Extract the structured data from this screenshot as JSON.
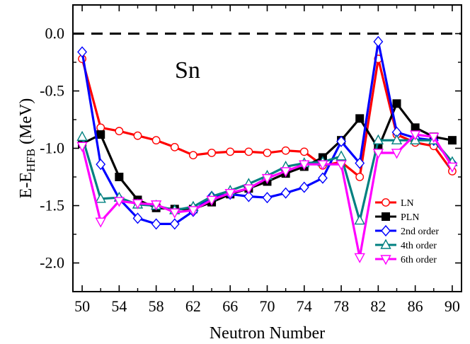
{
  "chart_data": {
    "type": "line",
    "xlabel": "Neutron Number",
    "ylabel_parts": {
      "main": "E-E",
      "sub": "HFB",
      "unit": " (MeV)"
    },
    "annotation": "Sn",
    "xlim": [
      49,
      91
    ],
    "ylim": [
      -2.25,
      0.25
    ],
    "xticks": [
      50,
      54,
      58,
      62,
      66,
      70,
      74,
      78,
      82,
      86,
      90
    ],
    "yticks": [
      0.0,
      -0.5,
      -1.0,
      -1.5,
      -2.0
    ],
    "ytick_labels": [
      "0.0",
      "-0.5",
      "-1.0",
      "-1.5",
      "-2.0"
    ],
    "reference_line": {
      "y": 0.0,
      "style": "dashed"
    },
    "legend_position": "bottom-right",
    "x": [
      50,
      52,
      54,
      56,
      58,
      60,
      62,
      64,
      66,
      68,
      70,
      72,
      74,
      76,
      78,
      80,
      82,
      84,
      86,
      88,
      90
    ],
    "series": [
      {
        "name": "LN",
        "color": "#ff0000",
        "marker": "circle-open",
        "values": [
          -0.22,
          -0.82,
          -0.85,
          -0.89,
          -0.93,
          -0.99,
          -1.06,
          -1.04,
          -1.03,
          -1.03,
          -1.04,
          -1.02,
          -1.03,
          -1.15,
          -1.12,
          -1.25,
          -0.22,
          -0.88,
          -0.95,
          -0.98,
          -1.2
        ]
      },
      {
        "name": "PLN",
        "color": "#000000",
        "marker": "square-filled",
        "values": [
          -0.96,
          -0.88,
          -1.25,
          -1.45,
          -1.52,
          -1.53,
          -1.53,
          -1.47,
          -1.4,
          -1.35,
          -1.29,
          -1.22,
          -1.16,
          -1.08,
          -0.93,
          -0.74,
          -1.0,
          -0.61,
          -0.82,
          -0.9,
          -0.93
        ]
      },
      {
        "name": "2nd order",
        "color": "#0000ff",
        "marker": "diamond-open",
        "values": [
          -0.16,
          -1.14,
          -1.44,
          -1.61,
          -1.66,
          -1.66,
          -1.55,
          -1.42,
          -1.4,
          -1.42,
          -1.43,
          -1.39,
          -1.34,
          -1.26,
          -0.94,
          -1.13,
          -0.07,
          -0.86,
          -0.91,
          -0.93,
          -1.13
        ]
      },
      {
        "name": "4th order",
        "color": "#008080",
        "marker": "triangle-up-open",
        "values": [
          -0.9,
          -1.44,
          -1.43,
          -1.49,
          -1.5,
          -1.54,
          -1.51,
          -1.42,
          -1.37,
          -1.31,
          -1.24,
          -1.16,
          -1.13,
          -1.12,
          -1.07,
          -1.63,
          -0.93,
          -0.93,
          -0.93,
          -0.93,
          -1.12
        ]
      },
      {
        "name": "6th order",
        "color": "#ff00ff",
        "marker": "triangle-down-open",
        "values": [
          -0.98,
          -1.64,
          -1.46,
          -1.48,
          -1.49,
          -1.56,
          -1.54,
          -1.45,
          -1.39,
          -1.35,
          -1.26,
          -1.2,
          -1.14,
          -1.14,
          -1.14,
          -1.95,
          -1.04,
          -1.04,
          -0.88,
          -0.9,
          -1.16
        ]
      }
    ]
  }
}
